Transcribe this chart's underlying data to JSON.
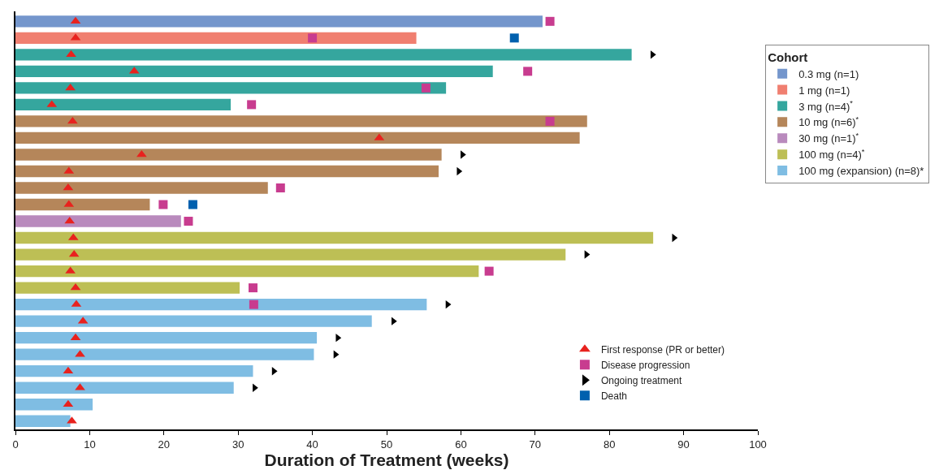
{
  "chart_data": {
    "type": "bar",
    "orientation": "horizontal",
    "xlabel": "Duration of Treatment (weeks)",
    "legend_title": "Cohort",
    "legend": "right",
    "tick_labels": "x",
    "grid": false,
    "categories": [
      null,
      null,
      null,
      null,
      null,
      null,
      null,
      null,
      null,
      null,
      null,
      null,
      null,
      null,
      null,
      null,
      null,
      null,
      null,
      null,
      null,
      null,
      null,
      null,
      null
    ],
    "xlim": [
      0,
      100
    ],
    "xticks": [
      0,
      10,
      20,
      30,
      40,
      50,
      60,
      70,
      80,
      90,
      100
    ],
    "series": [
      {
        "name": "0.3 mg (n=1)",
        "color": "#7496cc",
        "values": [
          71,
          null,
          null,
          null,
          null,
          null,
          null,
          null,
          null,
          null,
          null,
          null,
          null,
          null,
          null,
          null,
          null,
          null,
          null,
          null,
          null,
          null,
          null,
          null,
          null
        ]
      },
      {
        "name": "1 mg (n=1)",
        "color": "#f07f70",
        "values": [
          null,
          54,
          null,
          null,
          null,
          null,
          null,
          null,
          null,
          null,
          null,
          null,
          null,
          null,
          null,
          null,
          null,
          null,
          null,
          null,
          null,
          null,
          null,
          null,
          null
        ]
      },
      {
        "name": "3 mg (n=4)$^{*}$",
        "color": "#35a69e",
        "values": [
          null,
          null,
          83,
          64.3,
          58,
          29,
          null,
          null,
          null,
          null,
          null,
          null,
          null,
          null,
          null,
          null,
          null,
          null,
          null,
          null,
          null,
          null,
          null,
          null,
          null
        ]
      },
      {
        "name": "10 mg (n=6)$^{*}$",
        "color": "#b5865a",
        "values": [
          null,
          null,
          null,
          null,
          null,
          null,
          77,
          76,
          57.4,
          57,
          34,
          18.1,
          null,
          null,
          null,
          null,
          null,
          null,
          null,
          null,
          null,
          null,
          null,
          null,
          null
        ]
      },
      {
        "name": "30 mg (n=1)$^{*}$",
        "color": "#b98abd",
        "values": [
          null,
          null,
          null,
          null,
          null,
          null,
          null,
          null,
          null,
          null,
          null,
          null,
          22.3,
          null,
          null,
          null,
          null,
          null,
          null,
          null,
          null,
          null,
          null,
          null,
          null
        ]
      },
      {
        "name": "100 mg (n=4)$^{*}$",
        "color": "#bdbf55",
        "values": [
          null,
          null,
          null,
          null,
          null,
          null,
          null,
          null,
          null,
          null,
          null,
          null,
          null,
          85.9,
          74.1,
          62.4,
          30.2,
          null,
          null,
          null,
          null,
          null,
          null,
          null,
          null
        ]
      },
      {
        "name": "100 mg (expansion) (n=8)*",
        "color": "#7fbde3",
        "values": [
          null,
          null,
          null,
          null,
          null,
          null,
          null,
          null,
          null,
          null,
          null,
          null,
          null,
          null,
          null,
          null,
          null,
          55.4,
          48,
          40.6,
          40.2,
          32,
          29.4,
          10.4,
          7.4
        ]
      },
      {
        "name": "First response (PR or better)",
        "type": "scatter",
        "marker": "triangle",
        "color": "#e8221e",
        "values": [
          8.1,
          8.1,
          7.5,
          16,
          7.4,
          4.9,
          7.7,
          49,
          17,
          7.2,
          7.1,
          7.2,
          7.3,
          7.8,
          7.9,
          7.4,
          8.1,
          8.2,
          9.1,
          8.1,
          8.7,
          7.1,
          8.7,
          7.1,
          7.6
        ]
      },
      {
        "name": "Disease progression",
        "type": "scatter",
        "marker": "square",
        "color": "#c83c8f",
        "values": [
          72,
          40,
          null,
          69,
          55.3,
          31.8,
          72,
          null,
          null,
          null,
          35.7,
          19.9,
          23.3,
          null,
          null,
          63.8,
          32,
          32.1,
          null,
          null,
          null,
          null,
          null,
          null,
          null
        ]
      },
      {
        "name": "Ongoing treatment",
        "type": "scatter",
        "marker": "triangle",
        "color": "#000000",
        "values": [
          null,
          null,
          85.8,
          null,
          null,
          null,
          null,
          null,
          60.2,
          59.7,
          null,
          null,
          null,
          88.7,
          76.9,
          null,
          null,
          58.2,
          50.9,
          43.4,
          43.1,
          34.8,
          32.2,
          null,
          null
        ]
      },
      {
        "name": "Death",
        "type": "scatter",
        "marker": "square",
        "color": "#0060ae",
        "values": [
          null,
          67.2,
          null,
          null,
          null,
          null,
          null,
          null,
          null,
          null,
          null,
          23.9,
          null,
          null,
          null,
          null,
          null,
          null,
          null,
          null,
          null,
          null,
          null,
          null,
          null
        ]
      }
    ]
  }
}
